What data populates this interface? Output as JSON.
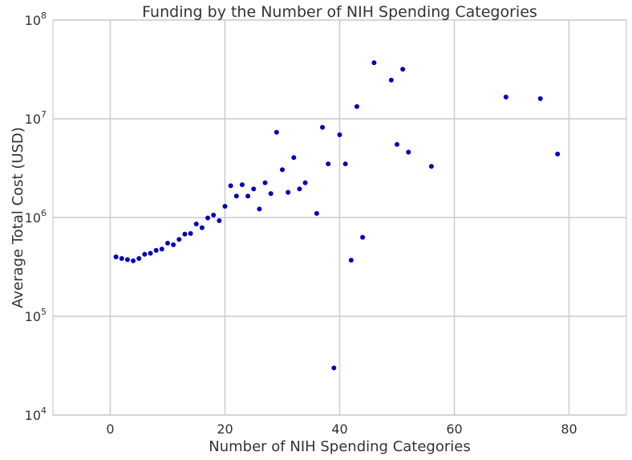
{
  "chart_data": {
    "type": "scatter",
    "title": "Funding by the Number of NIH Spending Categories",
    "xlabel": "Number of NIH Spending Categories",
    "ylabel": "Average Total Cost (USD)",
    "xlim": [
      -10,
      90
    ],
    "ylim": [
      10000,
      100000000
    ],
    "yscale": "log",
    "grid": true,
    "x_ticks": [
      0,
      20,
      40,
      60,
      80
    ],
    "y_ticks": [
      {
        "value": 10000,
        "base": "10",
        "exp": "4"
      },
      {
        "value": 100000,
        "base": "10",
        "exp": "5"
      },
      {
        "value": 1000000,
        "base": "10",
        "exp": "6"
      },
      {
        "value": 10000000,
        "base": "10",
        "exp": "7"
      },
      {
        "value": 100000000,
        "base": "10",
        "exp": "8"
      }
    ],
    "marker_color": "#0000bb",
    "points": [
      {
        "x": 1,
        "y": 400000
      },
      {
        "x": 2,
        "y": 385000
      },
      {
        "x": 3,
        "y": 375000
      },
      {
        "x": 4,
        "y": 365000
      },
      {
        "x": 5,
        "y": 385000
      },
      {
        "x": 6,
        "y": 425000
      },
      {
        "x": 7,
        "y": 435000
      },
      {
        "x": 8,
        "y": 465000
      },
      {
        "x": 9,
        "y": 480000
      },
      {
        "x": 10,
        "y": 550000
      },
      {
        "x": 11,
        "y": 530000
      },
      {
        "x": 12,
        "y": 600000
      },
      {
        "x": 13,
        "y": 680000
      },
      {
        "x": 14,
        "y": 690000
      },
      {
        "x": 15,
        "y": 860000
      },
      {
        "x": 16,
        "y": 790000
      },
      {
        "x": 17,
        "y": 990000
      },
      {
        "x": 18,
        "y": 1060000
      },
      {
        "x": 19,
        "y": 930000
      },
      {
        "x": 20,
        "y": 1300000
      },
      {
        "x": 21,
        "y": 2100000
      },
      {
        "x": 22,
        "y": 1650000
      },
      {
        "x": 23,
        "y": 2150000
      },
      {
        "x": 24,
        "y": 1650000
      },
      {
        "x": 25,
        "y": 1950000
      },
      {
        "x": 26,
        "y": 1220000
      },
      {
        "x": 27,
        "y": 2250000
      },
      {
        "x": 28,
        "y": 1750000
      },
      {
        "x": 29,
        "y": 7300000
      },
      {
        "x": 30,
        "y": 3050000
      },
      {
        "x": 31,
        "y": 1800000
      },
      {
        "x": 32,
        "y": 4050000
      },
      {
        "x": 33,
        "y": 1950000
      },
      {
        "x": 34,
        "y": 2250000
      },
      {
        "x": 36,
        "y": 1100000
      },
      {
        "x": 37,
        "y": 8200000
      },
      {
        "x": 38,
        "y": 3500000
      },
      {
        "x": 39,
        "y": 30000
      },
      {
        "x": 40,
        "y": 6900000
      },
      {
        "x": 41,
        "y": 3500000
      },
      {
        "x": 42,
        "y": 370000
      },
      {
        "x": 43,
        "y": 13300000
      },
      {
        "x": 44,
        "y": 630000
      },
      {
        "x": 46,
        "y": 37000000
      },
      {
        "x": 49,
        "y": 24700000
      },
      {
        "x": 50,
        "y": 5500000
      },
      {
        "x": 51,
        "y": 31800000
      },
      {
        "x": 52,
        "y": 4600000
      },
      {
        "x": 56,
        "y": 3300000
      },
      {
        "x": 69,
        "y": 16600000
      },
      {
        "x": 75,
        "y": 16000000
      },
      {
        "x": 78,
        "y": 4400000
      }
    ]
  }
}
